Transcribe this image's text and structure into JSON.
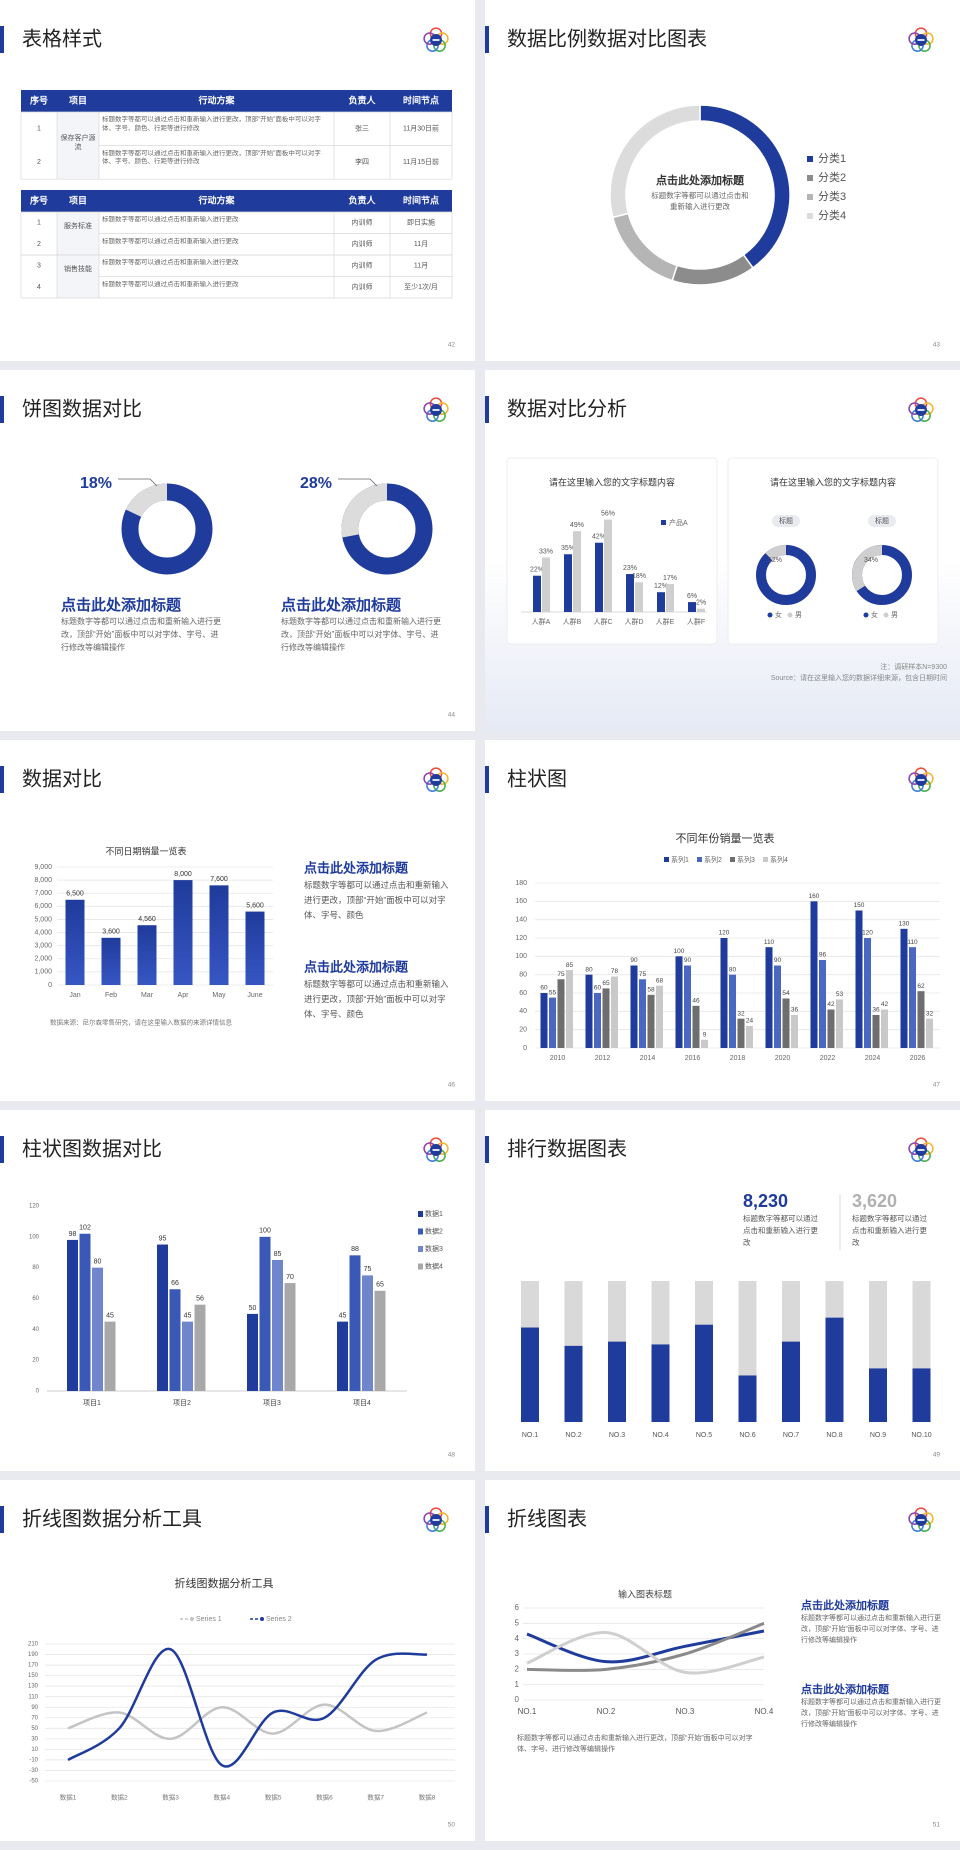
{
  "slides": [
    {
      "title": "表格样式",
      "page": 42,
      "tables": [
        {
          "header": [
            "序号",
            "项目",
            "行动方案",
            "负责人",
            "时间节点"
          ],
          "groups": [
            {
              "item": "保存客户源流",
              "rows": [
                [
                  1,
                  "标题数字等都可以通过点击和重新输入进行更改，顶部“开始”面板中可以对字体、字号、颜色、行距等进行修改",
                  "张三",
                  "11月30日前"
                ],
                [
                  2,
                  "标题数字等都可以通过点击和重新输入进行更改，顶部“开始”面板中可以对字体、字号、颜色、行距等进行修改",
                  "李四",
                  "11月15日前"
                ]
              ]
            }
          ]
        },
        {
          "header": [
            "序号",
            "项目",
            "行动方案",
            "负责人",
            "时间节点"
          ],
          "groups": [
            {
              "item": "服务标准",
              "rows": [
                [
                  1,
                  "标题数字等都可以通过点击和重新输入进行更改",
                  "内训师",
                  "即日实施"
                ],
                [
                  2,
                  "标题数字等都可以通过点击和重新输入进行更改",
                  "内训师",
                  "11月"
                ]
              ]
            },
            {
              "item": "销售技能",
              "rows": [
                [
                  3,
                  "标题数字等都可以通过点击和重新输入进行更改",
                  "内训师",
                  "11月"
                ],
                [
                  4,
                  "标题数字等都可以通过点击和重新输入进行更改",
                  "内训师",
                  "至少1次/月"
                ]
              ]
            }
          ]
        }
      ]
    },
    {
      "title": "数据比例数据对比图表",
      "page": 43,
      "chart": {
        "type": "donut",
        "title": "点击此处添加标题",
        "text": "标题数字等都可以通过点击和重新输入进行更改",
        "categories": [
          "分类1",
          "分类2",
          "分类3",
          "分类4"
        ],
        "values": [
          40,
          15,
          16,
          29
        ],
        "colors": [
          "#1f3b9b",
          "#8c8c8c",
          "#b5b5b5",
          "#dcdcdc"
        ]
      }
    },
    {
      "title": "饼图数据对比",
      "page": 44,
      "color": "#1f3b9b",
      "rest_color": "#dcdcdc",
      "items": [
        {
          "chart": {
            "type": "donut",
            "value": 18,
            "value_label": "18%"
          },
          "heading": "点击此处添加标题",
          "text": "标题数字等都可以通过点击和重新输入进行更改，顶部“开始”面板中可以对字体、字号、进行修改等编辑操作"
        },
        {
          "chart": {
            "type": "donut",
            "value": 28,
            "value_label": "28%"
          },
          "heading": "点击此处添加标题",
          "text": "标题数字等都可以通过点击和重新输入进行更改，顶部“开始”面板中可以对字体、字号、进行修改等编辑操作"
        }
      ]
    },
    {
      "title": "数据对比分析",
      "page": 45,
      "cards": [
        {
          "title": "请在这里输入您的文字标题内容",
          "chart": {
            "type": "bar",
            "categories": [
              "人群A",
              "人群B",
              "人群C",
              "人群D",
              "人群E",
              "人群F"
            ],
            "series": [
              {
                "name": "产品A",
                "color": "#1f3b9b",
                "values": [
                  22,
                  35,
                  42,
                  23,
                  12,
                  6
                ],
                "value_labels": [
                  "22%",
                  "35%",
                  "42%",
                  "23%",
                  "12%",
                  "6%"
                ]
              },
              {
                "color": "#cfcfcf",
                "values": [
                  33,
                  49,
                  56,
                  18,
                  17,
                  2
                ],
                "value_labels": [
                  "33%",
                  "49%",
                  "56%",
                  "18%",
                  "17%",
                  "2%"
                ]
              }
            ]
          }
        },
        {
          "title": "请在这里输入您的文字标题内容",
          "chart": {
            "type": "donut",
            "legend": [
              "女",
              "男"
            ],
            "colors": [
              "#1f3b9b",
              "#cfcfcf"
            ],
            "items": [
              {
                "label": "标题",
                "value": 12,
                "value_label": "12%"
              },
              {
                "label": "标题",
                "value": 34,
                "value_label": "34%"
              }
            ]
          }
        }
      ],
      "notes": [
        "注：调研样本N=9300",
        "Source：请在这里输入您的数据详细来源，包含日期时间"
      ]
    },
    {
      "title": "数据对比",
      "page": 46,
      "chart": {
        "type": "bar",
        "title": "不同日期销量一览表",
        "categories": [
          "Jan",
          "Feb",
          "Mar",
          "Apr",
          "May",
          "June"
        ],
        "values": [
          6500,
          3600,
          4560,
          8000,
          7600,
          5600
        ],
        "value_labels": [
          "6,500",
          "3,600",
          "4,560",
          "8,000",
          "7,600",
          "5,600"
        ],
        "color": "#1f3b9b",
        "ylim": [
          0,
          9000
        ],
        "yticks": [
          0,
          {
            "value": 1000,
            "label": "1,000"
          },
          {
            "value": 2000,
            "label": "2,000"
          },
          {
            "value": 3000,
            "label": "3,000"
          },
          {
            "value": 4000,
            "label": "4,000"
          },
          {
            "value": 5000,
            "label": "5,000"
          },
          {
            "value": 6000,
            "label": "6,000"
          },
          {
            "value": 7000,
            "label": "7,000"
          },
          {
            "value": 8000,
            "label": "8,000"
          },
          {
            "value": 9000,
            "label": "9,000"
          }
        ],
        "grid": true,
        "source": "数据来源：尼尔森零售研究，请在这里输入数据的来源详情信息"
      },
      "blocks": [
        {
          "heading": "点击此处添加标题",
          "text": "标题数字等都可以通过点击和重新输入进行更改，顶部“开始”面板中可以对字体、字号、颜色"
        },
        {
          "heading": "点击此处添加标题",
          "text": "标题数字等都可以通过点击和重新输入进行更改，顶部“开始”面板中可以对字体、字号、颜色"
        }
      ]
    },
    {
      "title": "柱状图",
      "page": 47,
      "chart": {
        "type": "bar",
        "title": "不同年份销量一览表",
        "categories": [
          "2010",
          "2012",
          "2014",
          "2016",
          "2018",
          "2020",
          "2022",
          "2024",
          "2026"
        ],
        "ylim": [
          0,
          180
        ],
        "yticks": [
          0,
          20,
          40,
          60,
          80,
          100,
          120,
          140,
          160,
          180
        ],
        "grid": true,
        "series": [
          {
            "name": "系列1",
            "color": "#1f3b9b",
            "values": [
              60,
              80,
              90,
              100,
              120,
              110,
              160,
              150,
              130
            ]
          },
          {
            "name": "系列2",
            "color": "#4a68c2",
            "values": [
              55,
              60,
              75,
              90,
              80,
              90,
              96,
              120,
              110
            ]
          },
          {
            "name": "系列3",
            "color": "#6e6e6e",
            "values": [
              75,
              65,
              58,
              46,
              32,
              54,
              42,
              36,
              62
            ]
          },
          {
            "name": "系列4",
            "color": "#c9c9c9",
            "values": [
              85,
              78,
              68,
              9,
              24,
              36,
              53,
              42,
              32
            ]
          }
        ]
      }
    },
    {
      "title": "柱状图数据对比",
      "page": 48,
      "chart": {
        "type": "bar",
        "categories": [
          "项目1",
          "项目2",
          "项目3",
          "项目4"
        ],
        "ylim": [
          0,
          120
        ],
        "yticks": [
          0,
          20,
          40,
          60,
          80,
          100,
          120
        ],
        "series": [
          {
            "name": "数据1",
            "color": "#1f3b9b",
            "values": [
              98,
              95,
              50,
              45
            ]
          },
          {
            "name": "数据2",
            "color": "#3a58b6",
            "values": [
              102,
              66,
              100,
              88
            ]
          },
          {
            "name": "数据3",
            "color": "#7086cc",
            "values": [
              80,
              45,
              85,
              75
            ]
          },
          {
            "name": "数据4",
            "color": "#a8a8a8",
            "values": [
              45,
              56,
              70,
              65
            ]
          }
        ]
      }
    },
    {
      "title": "排行数据图表",
      "page": 49,
      "stats": [
        {
          "value": "8,230",
          "text": "标题数字等都可以通过点击和重新输入进行更改"
        },
        {
          "value": "3,620",
          "text": "标题数字等都可以通过点击和重新输入进行更改"
        }
      ],
      "chart": {
        "type": "bar",
        "categories": [
          "NO.1",
          "NO.2",
          "NO.3",
          "NO.4",
          "NO.5",
          "NO.6",
          "NO.7",
          "NO.8",
          "NO.9",
          "NO.10"
        ],
        "values": [
          67,
          54,
          57,
          55,
          69,
          33,
          57,
          74,
          38,
          38
        ],
        "color": "#1f3b9b",
        "rest_color": "#d9d9d9"
      }
    },
    {
      "title": "折线图数据分析工具",
      "page": 50,
      "chart": {
        "type": "line",
        "title": "折线图数据分析工具",
        "categories": [
          "数据1",
          "数据2",
          "数据3",
          "数据4",
          "数据5",
          "数据6",
          "数据7",
          "数据8"
        ],
        "ylim": [
          -50,
          210
        ],
        "yticks": [
          -50,
          -30,
          -10,
          10,
          30,
          50,
          70,
          90,
          110,
          130,
          150,
          170,
          190,
          210
        ],
        "grid": true,
        "series": [
          {
            "name": "Series 1",
            "color": "#c4c4c4",
            "values": [
              50,
              80,
              30,
              90,
              40,
              95,
              45,
              80
            ]
          },
          {
            "name": "Series 2",
            "color": "#1f3b9b",
            "values": [
              -10,
              50,
              200,
              -20,
              80,
              70,
              180,
              190
            ]
          }
        ]
      }
    },
    {
      "title": "折线图表",
      "page": 51,
      "chart": {
        "type": "line",
        "title": "输入图表标题",
        "categories": [
          "NO.1",
          "NO.2",
          "NO.3",
          "NO.4"
        ],
        "ylim": [
          0,
          6
        ],
        "yticks": [
          0,
          1,
          2,
          3,
          4,
          5,
          6
        ],
        "grid": true,
        "series": [
          {
            "color": "#1f3b9b",
            "values": [
              4.3,
              2.5,
              3.5,
              4.5
            ]
          },
          {
            "color": "#8a8a8a",
            "values": [
              2,
              2,
              3,
              5
            ]
          },
          {
            "color": "#cfcfcf",
            "values": [
              2.4,
              4.4,
              1.8,
              2.8
            ]
          }
        ],
        "caption": "标题数字等都可以通过点击和重新输入进行更改，顶部“开始”面板中可以对字体、字号、进行修改等编辑操作"
      },
      "blocks": [
        {
          "heading": "点击此处添加标题",
          "text": "标题数字等都可以通过点击和重新输入进行更改，顶部“开始”面板中可以对字体、字号、进行修改等编辑操作"
        },
        {
          "heading": "点击此处添加标题",
          "text": "标题数字等都可以通过点击和重新输入进行更改，顶部“开始”面板中可以对字体、字号、进行修改等编辑操作"
        }
      ]
    }
  ]
}
